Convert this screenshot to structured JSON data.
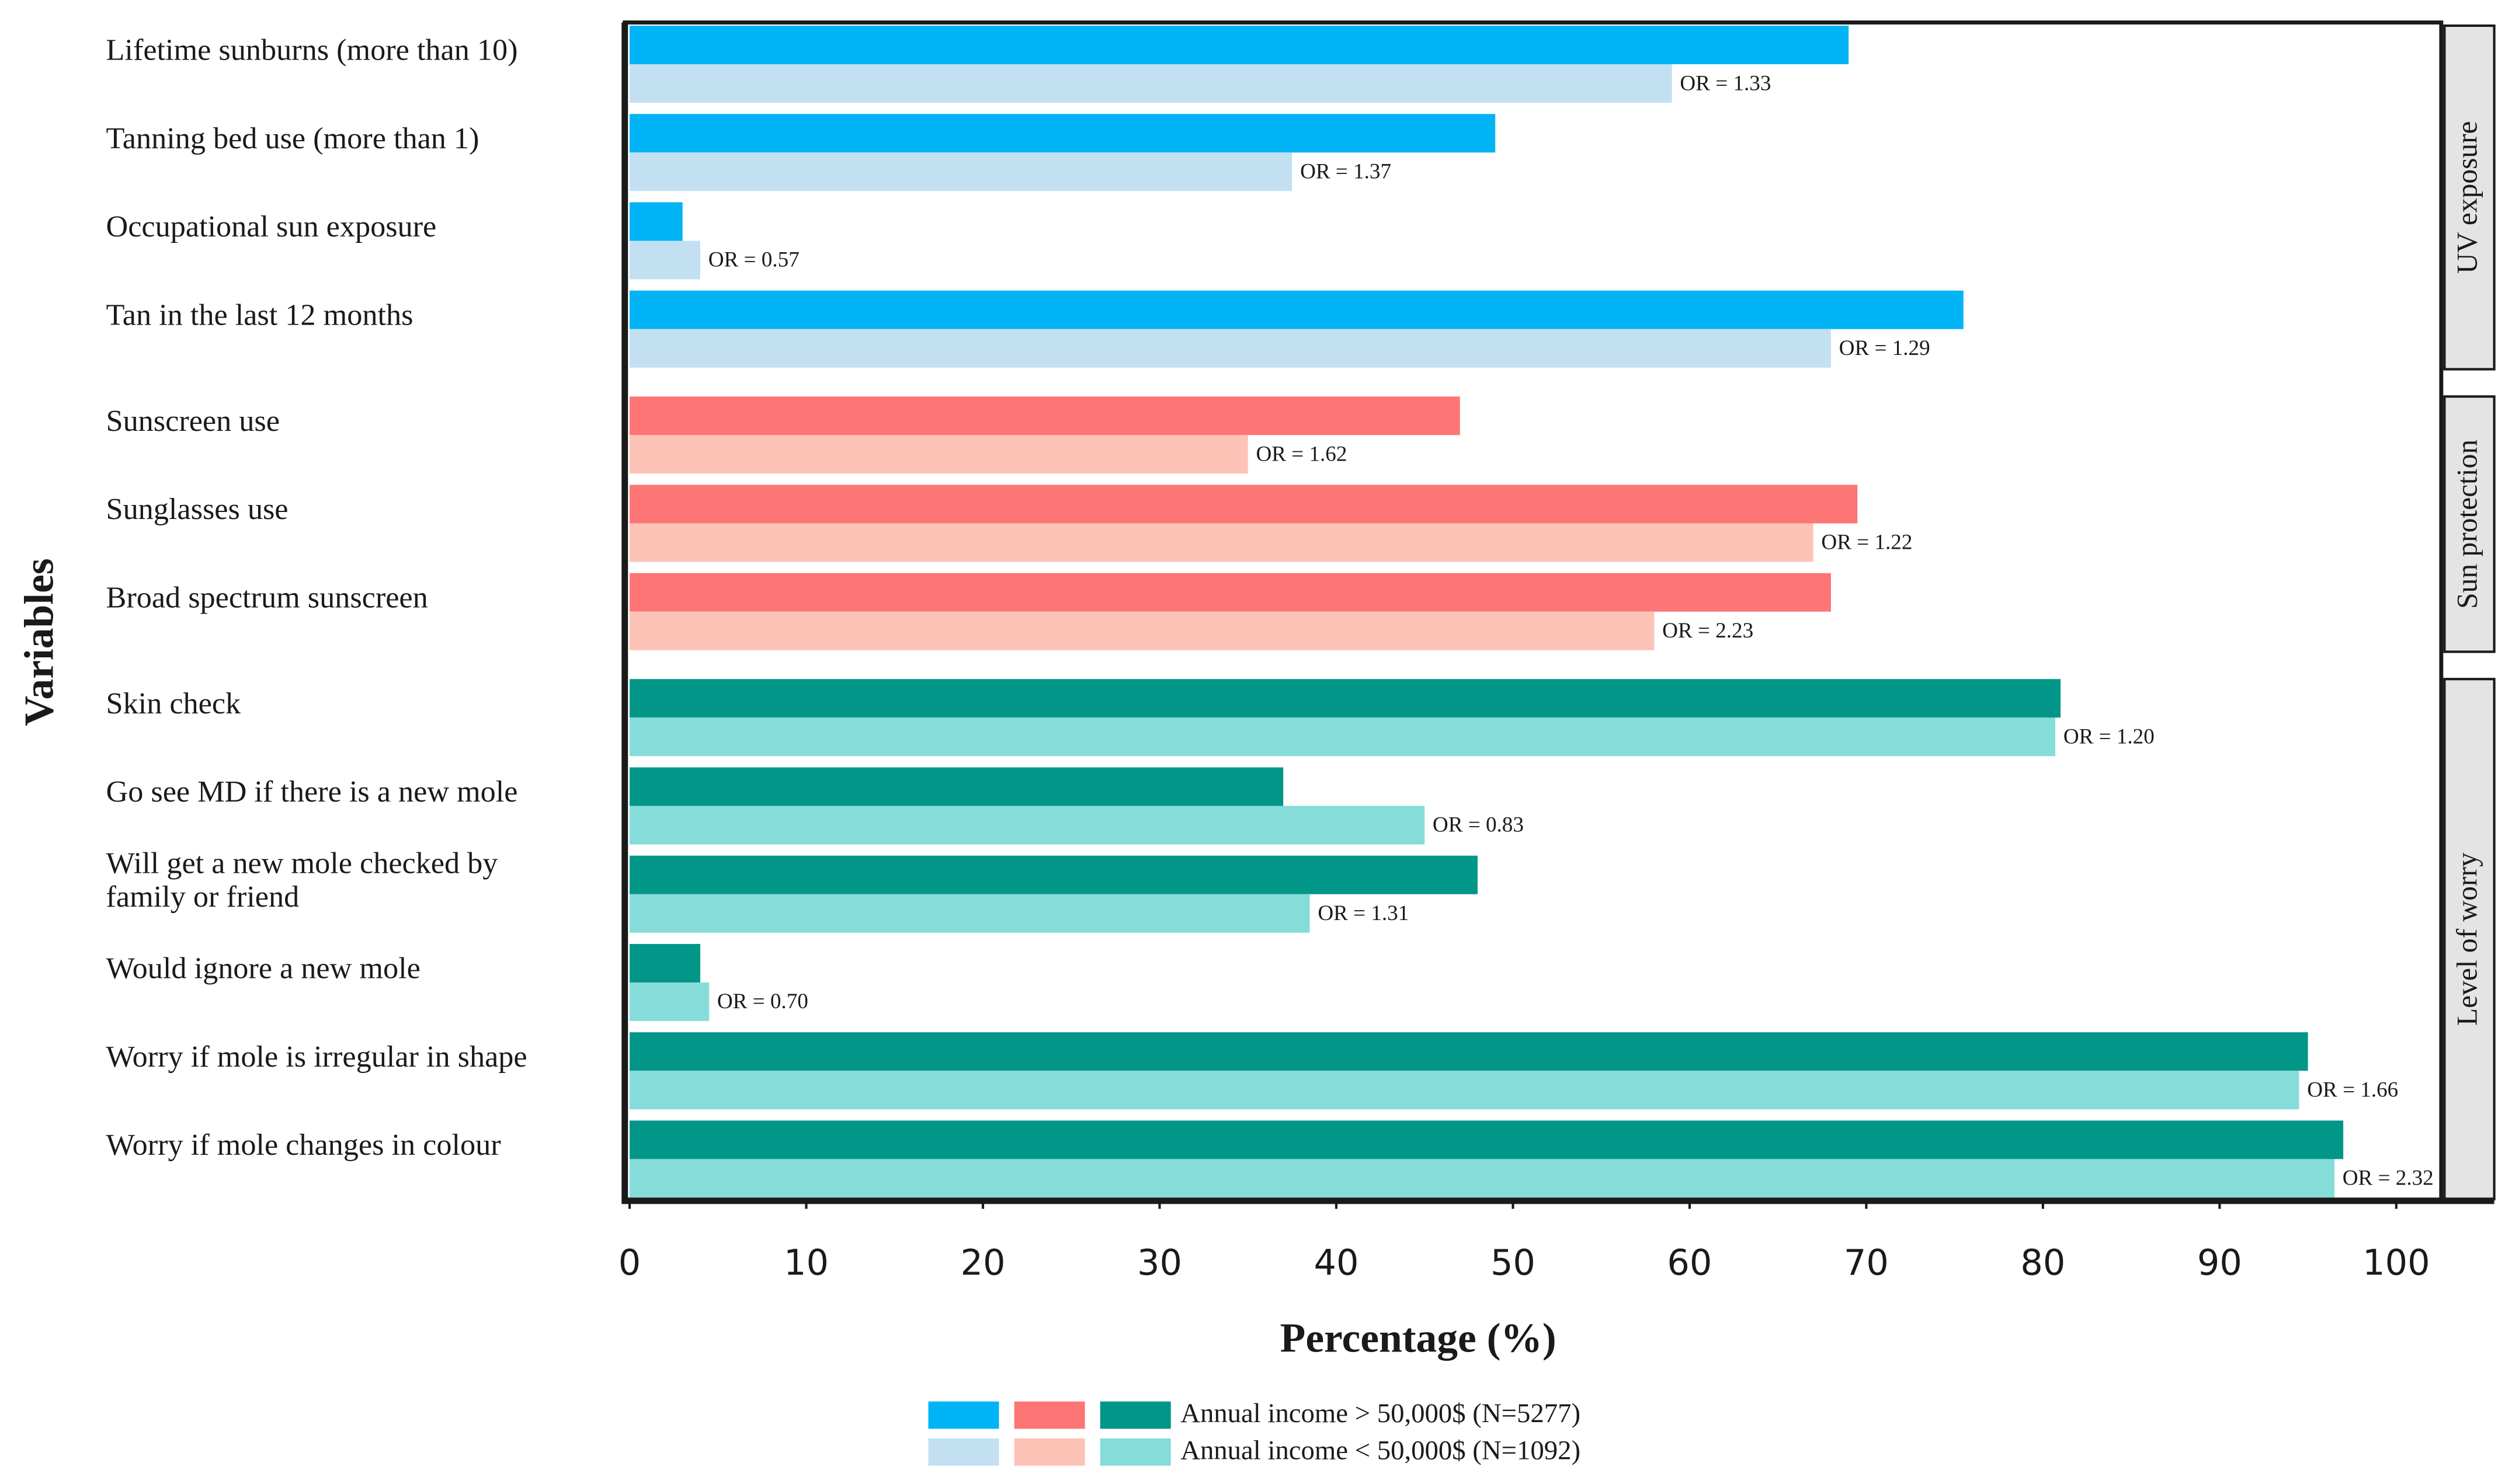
{
  "chart_data": {
    "type": "bar",
    "orientation": "horizontal",
    "xlabel": "Percentage (%)",
    "ylabel": "Variables",
    "xlim": [
      0,
      100
    ],
    "xticks": [
      0,
      10,
      20,
      30,
      40,
      50,
      60,
      70,
      80,
      90,
      100
    ],
    "series": [
      {
        "name": "Annual income > 50,000$ (N=5277)"
      },
      {
        "name": "Annual income < 50,000$ (N=1092)"
      }
    ],
    "groups": [
      {
        "label": "UV exposure",
        "categories": [
          "Lifetime sunburns (more than 10)",
          "Tanning bed use (more than 1)",
          "Occupational sun exposure",
          "Tan in the last 12 months"
        ],
        "series": [
          {
            "color": "#00b4f5",
            "values": [
              69,
              49,
              3,
              75.5
            ]
          },
          {
            "color": "#c3e0f3",
            "values": [
              59,
              37.5,
              4,
              68
            ]
          }
        ],
        "annotations": [
          "OR = 1.33",
          "OR = 1.37",
          "OR = 0.57",
          "OR = 1.29"
        ]
      },
      {
        "label": "Sun protection",
        "categories": [
          "Sunscreen use",
          "Sunglasses use",
          "Broad spectrum sunscreen"
        ],
        "series": [
          {
            "color": "#fd7575",
            "values": [
              47,
              69.5,
              68
            ]
          },
          {
            "color": "#fdc3b7",
            "values": [
              35,
              67,
              58
            ]
          }
        ],
        "annotations": [
          "OR = 1.62",
          "OR = 1.22",
          "OR = 2.23"
        ]
      },
      {
        "label": "Level of worry",
        "categories": [
          "Skin check",
          "Go see MD if there is a new mole",
          "Will get a new mole checked by\nfamily or friend",
          "Would ignore a new mole",
          "Worry if mole is irregular in shape",
          "Worry if mole changes in colour"
        ],
        "series": [
          {
            "color": "#029688",
            "values": [
              81,
              37,
              48,
              4,
              95,
              97
            ]
          },
          {
            "color": "#86dcd9",
            "values": [
              80.7,
              45,
              38.5,
              4.5,
              94.5,
              96.5
            ]
          }
        ],
        "annotations": [
          "OR = 1.20",
          "OR = 0.83",
          "OR = 1.31",
          "OR = 0.70",
          "OR = 1.66",
          "OR = 2.32"
        ]
      }
    ]
  }
}
